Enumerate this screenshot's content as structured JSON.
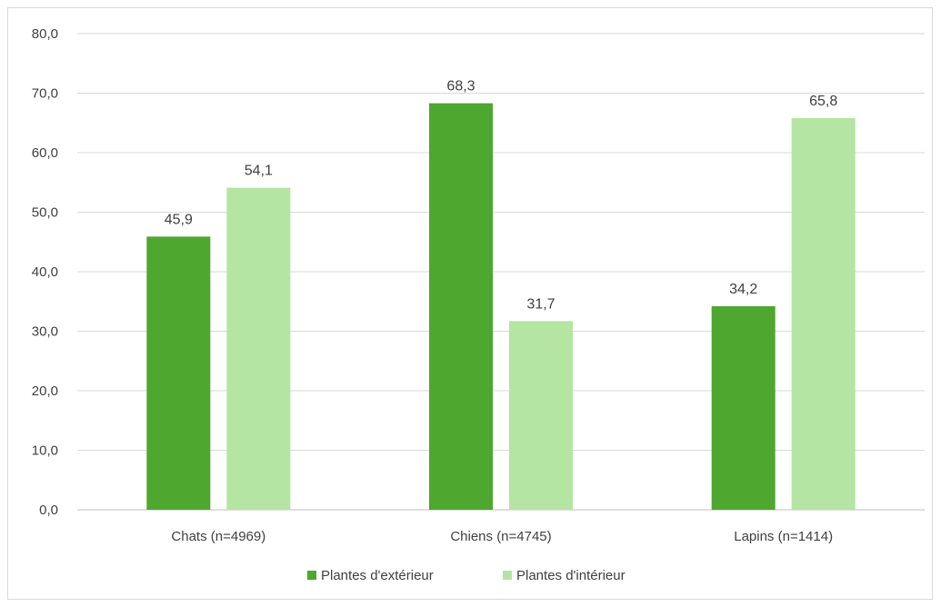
{
  "chart_data": {
    "type": "bar",
    "categories": [
      "Chats (n=4969)",
      "Chiens (n=4745)",
      "Lapins (n=1414)"
    ],
    "series": [
      {
        "name": "Plantes d'extérieur",
        "values": [
          45.9,
          68.3,
          34.2
        ],
        "labels": [
          "45,9",
          "68,3",
          "34,2"
        ],
        "color": "#4ea72e"
      },
      {
        "name": "Plantes d'intérieur",
        "values": [
          54.1,
          31.7,
          65.8
        ],
        "labels": [
          "54,1",
          "31,7",
          "65,8"
        ],
        "color": "#b4e5a2"
      }
    ],
    "yticks": [
      0,
      10,
      20,
      30,
      40,
      50,
      60,
      70,
      80
    ],
    "ytick_labels": [
      "0,0",
      "10,0",
      "20,0",
      "30,0",
      "40,0",
      "50,0",
      "60,0",
      "70,0",
      "80,0"
    ],
    "ylim": [
      0,
      80
    ],
    "grid": true,
    "legend": "bottom",
    "title": "",
    "xlabel": "",
    "ylabel": ""
  }
}
